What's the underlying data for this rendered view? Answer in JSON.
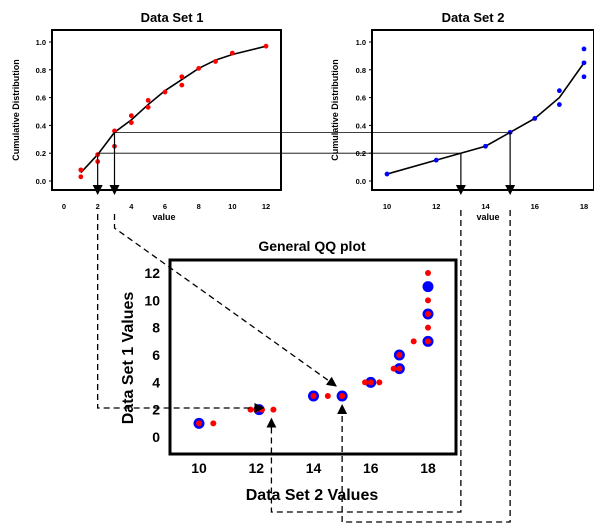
{
  "chart_data": [
    {
      "type": "line",
      "title": "Data Set 1",
      "xlabel": "value",
      "ylabel": "Cumulative Distribution",
      "xlim": [
        0,
        12
      ],
      "ylim": [
        0,
        1
      ],
      "xticks": [
        "0",
        "2",
        "4",
        "6",
        "8",
        "10",
        "12"
      ],
      "yticks": [
        "0.0",
        "0.2",
        "0.4",
        "0.6",
        "0.8",
        "1.0"
      ],
      "line": {
        "x": [
          1,
          2,
          3,
          4,
          5,
          6,
          7,
          8,
          9,
          10,
          12
        ],
        "y": [
          0.06,
          0.19,
          0.35,
          0.44,
          0.55,
          0.65,
          0.73,
          0.81,
          0.87,
          0.91,
          0.97
        ]
      },
      "points": {
        "x": [
          1,
          1,
          2,
          2,
          3,
          3,
          4,
          4,
          5,
          5,
          6,
          7,
          7,
          8,
          9,
          10,
          12
        ],
        "y": [
          0.03,
          0.08,
          0.14,
          0.19,
          0.25,
          0.36,
          0.42,
          0.47,
          0.53,
          0.58,
          0.64,
          0.69,
          0.75,
          0.81,
          0.86,
          0.92,
          0.97
        ]
      },
      "color": "#ff0000"
    },
    {
      "type": "line",
      "title": "Data Set 2",
      "xlabel": "value",
      "ylabel": "Cumulative Distribution",
      "xlim": [
        10,
        18
      ],
      "ylim": [
        0,
        1
      ],
      "xticks": [
        "10",
        "12",
        "14",
        "16",
        "18"
      ],
      "yticks": [
        "0.0",
        "0.2",
        "0.4",
        "0.6",
        "0.8",
        "1.0"
      ],
      "line": {
        "x": [
          10,
          12,
          14,
          15,
          16,
          17,
          18
        ],
        "y": [
          0.05,
          0.15,
          0.25,
          0.35,
          0.45,
          0.6,
          0.85
        ]
      },
      "points": {
        "x": [
          10,
          12,
          14,
          15,
          16,
          17,
          17,
          18,
          18,
          18
        ],
        "y": [
          0.05,
          0.15,
          0.25,
          0.35,
          0.45,
          0.55,
          0.65,
          0.75,
          0.85,
          0.95
        ]
      },
      "color": "#0000ff"
    },
    {
      "type": "scatter",
      "title": "General QQ plot",
      "xlabel": "Data Set 2 Values",
      "ylabel": "Data Set 1 Values",
      "xlim": [
        9.2,
        18.8
      ],
      "ylim": [
        -0.5,
        13
      ],
      "xticks": [
        "10",
        "12",
        "14",
        "16",
        "18"
      ],
      "yticks": [
        "0",
        "2",
        "4",
        "6",
        "8",
        "10",
        "12"
      ],
      "series": [
        {
          "color": "#0000ff",
          "x": [
            10,
            12.1,
            14,
            15,
            16,
            17,
            17,
            18,
            18,
            18
          ],
          "y": [
            1,
            2,
            3,
            3,
            4,
            5,
            6,
            7,
            9,
            11
          ]
        },
        {
          "color": "#ff0000",
          "x": [
            10,
            10.5,
            11.8,
            12,
            12.2,
            12.6,
            14,
            14.5,
            15,
            15.8,
            16,
            16.3,
            16.8,
            17,
            17,
            17.5,
            18,
            18,
            18,
            18,
            18
          ],
          "y": [
            1,
            1,
            2,
            2,
            2,
            2,
            3,
            3,
            3,
            4,
            4,
            4,
            5,
            5,
            6,
            7,
            7,
            8,
            9,
            10,
            12
          ]
        }
      ]
    }
  ],
  "connectors": {
    "ds1_quantile_x": [
      2,
      3
    ],
    "ds2_quantile_x": [
      13,
      15
    ],
    "horizontal_levels": [
      0.2,
      0.35
    ],
    "qq_targets": [
      [
        12.6,
        2
      ],
      [
        15,
        3
      ]
    ]
  }
}
